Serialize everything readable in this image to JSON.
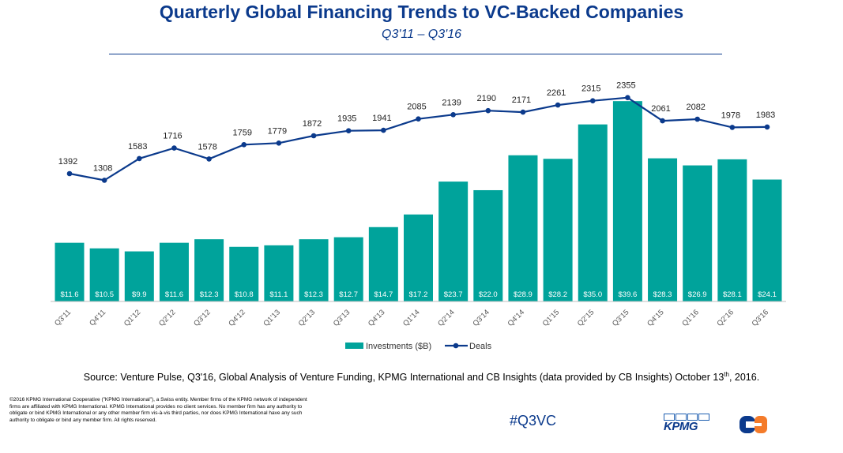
{
  "header": {
    "title": "Quarterly Global Financing Trends to VC-Backed Companies",
    "subtitle": "Q3'11 – Q3'16"
  },
  "chart_data": {
    "type": "bar+line",
    "categories": [
      "Q3'11",
      "Q4'11",
      "Q1'12",
      "Q2'12",
      "Q3'12",
      "Q4'12",
      "Q1'13",
      "Q2'13",
      "Q3'13",
      "Q4'13",
      "Q1'14",
      "Q2'14",
      "Q3'14",
      "Q4'14",
      "Q1'15",
      "Q2'15",
      "Q3'15",
      "Q4'15",
      "Q1'16",
      "Q2'16",
      "Q3'16"
    ],
    "series": [
      {
        "name": "Investments ($B)",
        "type": "bar",
        "values": [
          11.6,
          10.5,
          9.9,
          11.6,
          12.3,
          10.8,
          11.1,
          12.3,
          12.7,
          14.7,
          17.2,
          23.7,
          22.0,
          28.9,
          28.2,
          35.0,
          39.6,
          28.3,
          26.9,
          28.1,
          24.1
        ],
        "labels": [
          "$11.6",
          "$10.5",
          "$9.9",
          "$11.6",
          "$12.3",
          "$10.8",
          "$11.1",
          "$12.3",
          "$12.7",
          "$14.7",
          "$17.2",
          "$23.7",
          "$22.0",
          "$28.9",
          "$28.2",
          "$35.0",
          "$39.6",
          "$28.3",
          "$26.9",
          "$28.1",
          "$24.1"
        ]
      },
      {
        "name": "Deals",
        "type": "line",
        "values": [
          1392,
          1308,
          1583,
          1716,
          1578,
          1759,
          1779,
          1872,
          1935,
          1941,
          2085,
          2139,
          2190,
          2171,
          2261,
          2315,
          2355,
          2061,
          2082,
          1978,
          1983
        ]
      }
    ],
    "legend": [
      "Investments ($B)",
      "Deals"
    ],
    "colors": {
      "bars": "#00a39b",
      "line": "#0b3a8c",
      "bar_label": "#ffffff"
    }
  },
  "footer": {
    "source_pre": "Source: Venture Pulse, Q3'16, Global Analysis of Venture Funding, KPMG International and CB Insights (data provided by CB Insights) October 13",
    "source_sup": "th",
    "source_post": ", 2016.",
    "copyright": "©2016 KPMG International Cooperative (\"KPMG International\"), a Swiss entity. Member firms of the KPMG network of independent firms are affiliated with KPMG International. KPMG International provides no client services. No member firm has any authority to obligate or bind KPMG International or any other member firm vis-à-vis third parties, nor does KPMG International have any such authority to obligate or bind any member firm. All rights reserved.",
    "hashtag": "#Q3VC",
    "kpmg_logo": "KPMG"
  }
}
